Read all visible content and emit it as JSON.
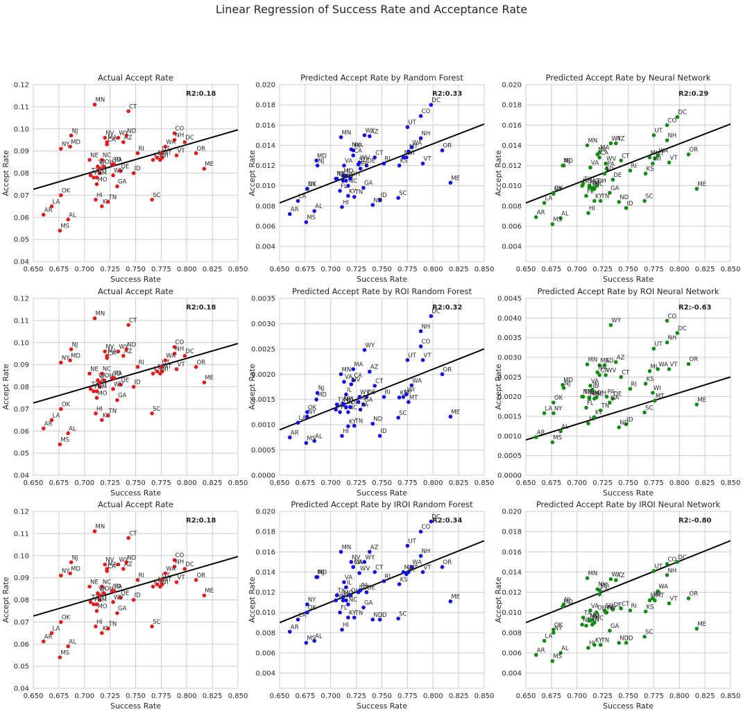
{
  "figure": {
    "title": "Linear Regression of Success Rate and Acceptance Rate",
    "colors": {
      "actual": "#e41a1c",
      "random_forest": "#1010e8",
      "neural_network": "#138a13",
      "regression_line": "#000000",
      "grid": "#cccccc"
    }
  },
  "states": [
    "AL",
    "AR",
    "AZ",
    "CA",
    "CO",
    "CT",
    "DC",
    "DE",
    "FL",
    "GA",
    "HI",
    "ID",
    "IL",
    "IN",
    "KS",
    "KY",
    "LA",
    "MA",
    "MD",
    "ME",
    "MI",
    "MN",
    "MO",
    "MS",
    "MT",
    "NC",
    "ND",
    "NE",
    "NH",
    "NJ",
    "NM",
    "NV",
    "NY",
    "OH",
    "OK",
    "OR",
    "PA",
    "RI",
    "SC",
    "SD",
    "TN",
    "TX",
    "UT",
    "VA",
    "VT",
    "WA",
    "WI",
    "WV",
    "WY"
  ],
  "success_rate": [
    0.684,
    0.66,
    0.738,
    0.722,
    0.788,
    0.743,
    0.798,
    0.735,
    0.709,
    0.732,
    0.711,
    0.748,
    0.715,
    0.715,
    0.767,
    0.717,
    0.668,
    0.722,
    0.686,
    0.817,
    0.771,
    0.71,
    0.712,
    0.676,
    0.776,
    0.717,
    0.741,
    0.705,
    0.788,
    0.687,
    0.712,
    0.72,
    0.677,
    0.719,
    0.677,
    0.809,
    0.729,
    0.752,
    0.766,
    0.727,
    0.723,
    0.706,
    0.775,
    0.713,
    0.79,
    0.779,
    0.774,
    0.728,
    0.733
  ],
  "chart_data": [
    {
      "type": "scatter",
      "title": "Actual Accept Rate",
      "xlabel": "Success Rate",
      "ylabel": "Accept Rate",
      "xlim": [
        0.65,
        0.85
      ],
      "ylim": [
        0.04,
        0.12
      ],
      "xticks": [
        "0.650",
        "0.675",
        "0.700",
        "0.725",
        "0.750",
        "0.775",
        "0.800",
        "0.825",
        "0.850"
      ],
      "yticks": [
        "0.04",
        "0.05",
        "0.06",
        "0.07",
        "0.08",
        "0.09",
        "0.10",
        "0.11",
        "0.12"
      ],
      "annotation": "R2:0.18",
      "series_color": "#e41a1c",
      "regression_line": [
        [
          0.65,
          0.0727
        ],
        [
          0.85,
          0.0996
        ]
      ],
      "y": [
        0.059,
        0.0612,
        0.094,
        0.093,
        0.098,
        0.108,
        0.094,
        0.081,
        0.078,
        0.074,
        0.068,
        0.08,
        0.082,
        0.08,
        0.086,
        0.065,
        0.065,
        0.094,
        0.092,
        0.082,
        0.087,
        0.111,
        0.075,
        0.054,
        0.087,
        0.086,
        0.097,
        0.086,
        0.095,
        0.097,
        0.078,
        0.096,
        0.091,
        0.083,
        0.07,
        0.089,
        0.084,
        0.089,
        0.068,
        0.084,
        0.067,
        0.079,
        0.089,
        0.083,
        0.088,
        0.092,
        0.086,
        0.079,
        0.096
      ]
    },
    {
      "type": "scatter",
      "title": "Predicted Accept Rate by Random Forest",
      "xlabel": "Success Rate",
      "ylabel": "Accept Rate",
      "xlim": [
        0.65,
        0.85
      ],
      "ylim": [
        0.0025,
        0.02
      ],
      "xticks": [
        "0.650",
        "0.675",
        "0.700",
        "0.725",
        "0.750",
        "0.775",
        "0.800",
        "0.825",
        "0.850"
      ],
      "yticks": [
        "0.004",
        "0.006",
        "0.008",
        "0.010",
        "0.012",
        "0.014",
        "0.016",
        "0.018",
        "0.020"
      ],
      "annotation": "R2:0.33",
      "series_color": "#1010e8",
      "regression_line": [
        [
          0.65,
          0.0083
        ],
        [
          0.85,
          0.0161
        ]
      ],
      "y": [
        0.0075,
        0.0072,
        0.0149,
        0.013,
        0.0169,
        0.0128,
        0.018,
        0.012,
        0.0095,
        0.0098,
        0.0079,
        0.0086,
        0.011,
        0.0105,
        0.012,
        0.009,
        0.0085,
        0.0135,
        0.0125,
        0.0103,
        0.0128,
        0.0148,
        0.011,
        0.0064,
        0.0134,
        0.01,
        0.0081,
        0.0107,
        0.0147,
        0.012,
        0.0105,
        0.0136,
        0.0097,
        0.0107,
        0.0097,
        0.0135,
        0.0117,
        0.0122,
        0.0088,
        0.0121,
        0.0089,
        0.0107,
        0.0158,
        0.012,
        0.0122,
        0.0138,
        0.0128,
        0.0123,
        0.015
      ]
    },
    {
      "type": "scatter",
      "title": "Predicted Accept Rate by Neural Network",
      "xlabel": "Success Rate",
      "ylabel": "Accept Rate",
      "xlim": [
        0.65,
        0.85
      ],
      "ylim": [
        0.0025,
        0.02
      ],
      "xticks": [
        "0.650",
        "0.675",
        "0.700",
        "0.725",
        "0.750",
        "0.775",
        "0.800",
        "0.825",
        "0.850"
      ],
      "yticks": [
        "0.004",
        "0.006",
        "0.008",
        "0.010",
        "0.012",
        "0.014",
        "0.016",
        "0.018",
        "0.020"
      ],
      "annotation": "R2:0.29",
      "series_color": "#138a13",
      "regression_line": [
        [
          0.65,
          0.0083
        ],
        [
          0.85,
          0.0161
        ]
      ],
      "y": [
        0.0068,
        0.0069,
        0.0142,
        0.0128,
        0.016,
        0.0125,
        0.0168,
        0.0106,
        0.009,
        0.0093,
        0.0073,
        0.0078,
        0.0098,
        0.0096,
        0.0112,
        0.0085,
        0.0083,
        0.0133,
        0.012,
        0.0097,
        0.0128,
        0.014,
        0.01,
        0.0062,
        0.0127,
        0.0097,
        0.0084,
        0.01,
        0.0145,
        0.012,
        0.0098,
        0.0131,
        0.0092,
        0.01,
        0.0093,
        0.0131,
        0.0117,
        0.0115,
        0.0085,
        0.0112,
        0.0085,
        0.0102,
        0.015,
        0.0118,
        0.0123,
        0.013,
        0.0122,
        0.0122,
        0.0142
      ]
    },
    {
      "type": "scatter",
      "title": "Actual Accept Rate",
      "xlabel": "Success Rate",
      "ylabel": "Accept Rate",
      "xlim": [
        0.65,
        0.85
      ],
      "ylim": [
        0.04,
        0.12
      ],
      "xticks": [
        "0.650",
        "0.675",
        "0.700",
        "0.725",
        "0.750",
        "0.775",
        "0.800",
        "0.825",
        "0.850"
      ],
      "yticks": [
        "0.04",
        "0.05",
        "0.06",
        "0.07",
        "0.08",
        "0.09",
        "0.10",
        "0.11",
        "0.12"
      ],
      "annotation": "R2:0.18",
      "series_color": "#e41a1c",
      "regression_line": [
        [
          0.65,
          0.0727
        ],
        [
          0.85,
          0.0996
        ]
      ],
      "y": [
        0.059,
        0.0612,
        0.094,
        0.093,
        0.098,
        0.108,
        0.094,
        0.081,
        0.078,
        0.074,
        0.068,
        0.08,
        0.082,
        0.08,
        0.086,
        0.065,
        0.065,
        0.094,
        0.092,
        0.082,
        0.087,
        0.111,
        0.075,
        0.054,
        0.087,
        0.086,
        0.097,
        0.086,
        0.095,
        0.097,
        0.078,
        0.096,
        0.091,
        0.083,
        0.07,
        0.089,
        0.084,
        0.089,
        0.068,
        0.084,
        0.067,
        0.079,
        0.089,
        0.083,
        0.088,
        0.092,
        0.086,
        0.079,
        0.096
      ]
    },
    {
      "type": "scatter",
      "title": "Predicted Accept Rate by ROI Random Forest",
      "xlabel": "Success Rate",
      "ylabel": "Accept Rate",
      "xlim": [
        0.65,
        0.85
      ],
      "ylim": [
        0.0,
        0.0035
      ],
      "xticks": [
        "0.650",
        "0.675",
        "0.700",
        "0.725",
        "0.750",
        "0.775",
        "0.800",
        "0.825",
        "0.850"
      ],
      "yticks": [
        "0.0000",
        "0.0005",
        "0.0010",
        "0.0015",
        "0.0020",
        "0.0025",
        "0.0030",
        "0.0035"
      ],
      "annotation": "R2:0.32",
      "series_color": "#1010e8",
      "regression_line": [
        [
          0.65,
          0.0009
        ],
        [
          0.85,
          0.0025
        ]
      ],
      "y": [
        0.00068,
        0.00075,
        0.00205,
        0.00188,
        0.00255,
        0.00177,
        0.00315,
        0.00155,
        0.00125,
        0.0014,
        0.00078,
        0.00078,
        0.0016,
        0.00135,
        0.00154,
        0.00097,
        0.00104,
        0.0021,
        0.0015,
        0.00116,
        0.00155,
        0.002,
        0.0014,
        0.00064,
        0.00145,
        0.00125,
        0.00102,
        0.0013,
        0.00285,
        0.00163,
        0.00142,
        0.0018,
        0.00116,
        0.00135,
        0.00125,
        0.002,
        0.0013,
        0.00155,
        0.00114,
        0.00145,
        0.00098,
        0.0014,
        0.00228,
        0.00185,
        0.00228,
        0.00178,
        0.0016,
        0.00155,
        0.00248
      ]
    },
    {
      "type": "scatter",
      "title": "Predicted Accept Rate by ROI Neural Network",
      "xlabel": "Success Rate",
      "ylabel": "Accept Rate",
      "xlim": [
        0.65,
        0.85
      ],
      "ylim": [
        0.0,
        0.0045
      ],
      "xticks": [
        "0.650",
        "0.675",
        "0.700",
        "0.725",
        "0.750",
        "0.775",
        "0.800",
        "0.825",
        "0.850"
      ],
      "yticks": [
        "0.0000",
        "0.0005",
        "0.0010",
        "0.0015",
        "0.0020",
        "0.0025",
        "0.0030",
        "0.0035",
        "0.0040",
        "0.0045"
      ],
      "annotation": "R2:-0.63",
      "series_color": "#138a13",
      "regression_line": [
        [
          0.65,
          0.0009
        ],
        [
          0.85,
          0.0025
        ]
      ],
      "y": [
        0.00112,
        0.00097,
        0.00288,
        0.00255,
        0.00393,
        0.0025,
        0.00362,
        0.00195,
        0.00172,
        0.00185,
        0.00132,
        0.0013,
        0.00215,
        0.00218,
        0.00233,
        0.00148,
        0.00158,
        0.0028,
        0.0023,
        0.0018,
        0.00265,
        0.00282,
        0.00195,
        0.00084,
        0.0019,
        0.00195,
        0.00122,
        0.002,
        0.00338,
        0.00222,
        0.00198,
        0.00262,
        0.00158,
        0.00198,
        0.00185,
        0.00283,
        0.002,
        0.0022,
        0.0016,
        0.0028,
        0.00165,
        0.002,
        0.00322,
        0.00228,
        0.0027,
        0.0027,
        0.0021,
        0.00255,
        0.00382
      ]
    },
    {
      "type": "scatter",
      "title": "Actual Accept Rate",
      "xlabel": "Success Rate",
      "ylabel": "Accept Rate",
      "xlim": [
        0.65,
        0.85
      ],
      "ylim": [
        0.04,
        0.12
      ],
      "xticks": [
        "0.650",
        "0.675",
        "0.700",
        "0.725",
        "0.750",
        "0.775",
        "0.800",
        "0.825",
        "0.850"
      ],
      "yticks": [
        "0.04",
        "0.05",
        "0.06",
        "0.07",
        "0.08",
        "0.09",
        "0.10",
        "0.11",
        "0.12"
      ],
      "annotation": "R2:0.18",
      "series_color": "#e41a1c",
      "regression_line": [
        [
          0.65,
          0.0727
        ],
        [
          0.85,
          0.0996
        ]
      ],
      "y": [
        0.059,
        0.0612,
        0.094,
        0.093,
        0.098,
        0.108,
        0.094,
        0.081,
        0.078,
        0.074,
        0.068,
        0.08,
        0.082,
        0.08,
        0.086,
        0.065,
        0.065,
        0.094,
        0.092,
        0.082,
        0.087,
        0.111,
        0.075,
        0.054,
        0.087,
        0.086,
        0.097,
        0.086,
        0.095,
        0.097,
        0.078,
        0.096,
        0.091,
        0.083,
        0.07,
        0.089,
        0.084,
        0.089,
        0.068,
        0.084,
        0.067,
        0.079,
        0.089,
        0.083,
        0.088,
        0.092,
        0.086,
        0.079,
        0.096
      ]
    },
    {
      "type": "scatter",
      "title": "Predicted Accept Rate by IROI Random Forest",
      "xlabel": "Success Rate",
      "ylabel": "Accept Rate",
      "xlim": [
        0.65,
        0.85
      ],
      "ylim": [
        0.0025,
        0.02
      ],
      "xticks": [
        "0.650",
        "0.675",
        "0.700",
        "0.725",
        "0.750",
        "0.775",
        "0.800",
        "0.825",
        "0.850"
      ],
      "yticks": [
        "0.004",
        "0.006",
        "0.008",
        "0.010",
        "0.012",
        "0.014",
        "0.016",
        "0.018",
        "0.020"
      ],
      "annotation": "R2:0.34",
      "series_color": "#1010e8",
      "regression_line": [
        [
          0.65,
          0.009
        ],
        [
          0.85,
          0.0171
        ]
      ],
      "y": [
        0.0072,
        0.0081,
        0.016,
        0.0145,
        0.018,
        0.014,
        0.019,
        0.012,
        0.01,
        0.0105,
        0.0083,
        0.0093,
        0.0125,
        0.0112,
        0.0128,
        0.0095,
        0.0093,
        0.0145,
        0.0135,
        0.0111,
        0.014,
        0.016,
        0.0115,
        0.007,
        0.014,
        0.0108,
        0.0093,
        0.0112,
        0.0156,
        0.0135,
        0.0112,
        0.015,
        0.0108,
        0.0117,
        0.01,
        0.0145,
        0.0122,
        0.0131,
        0.0094,
        0.012,
        0.0095,
        0.0117,
        0.0166,
        0.013,
        0.014,
        0.0145,
        0.0138,
        0.0139,
        0.015
      ]
    },
    {
      "type": "scatter",
      "title": "Predicted Accept Rate by IROI Neural Network",
      "xlabel": "Success Rate",
      "ylabel": "Accept Rate",
      "xlim": [
        0.65,
        0.85
      ],
      "ylim": [
        0.0025,
        0.02
      ],
      "xticks": [
        "0.650",
        "0.675",
        "0.700",
        "0.725",
        "0.750",
        "0.775",
        "0.800",
        "0.825",
        "0.850"
      ],
      "yticks": [
        "0.004",
        "0.006",
        "0.008",
        "0.010",
        "0.012",
        "0.014",
        "0.016",
        "0.018",
        "0.020"
      ],
      "annotation": "R2:-0.80",
      "series_color": "#138a13",
      "regression_line": [
        [
          0.65,
          0.009
        ],
        [
          0.85,
          0.0171
        ]
      ],
      "y": [
        0.006,
        0.0058,
        0.0132,
        0.0118,
        0.0148,
        0.0104,
        0.015,
        0.0103,
        0.0087,
        0.0082,
        0.0065,
        0.007,
        0.0093,
        0.0088,
        0.0101,
        0.0068,
        0.0072,
        0.0122,
        0.0106,
        0.0084,
        0.0112,
        0.0134,
        0.0092,
        0.0052,
        0.0112,
        0.009,
        0.007,
        0.0088,
        0.0137,
        0.0108,
        0.0092,
        0.0123,
        0.008,
        0.01,
        0.0083,
        0.0114,
        0.01,
        0.0102,
        0.0076,
        0.0102,
        0.0068,
        0.0095,
        0.0141,
        0.0102,
        0.0109,
        0.0121,
        0.0114,
        0.01,
        0.0133
      ]
    }
  ]
}
